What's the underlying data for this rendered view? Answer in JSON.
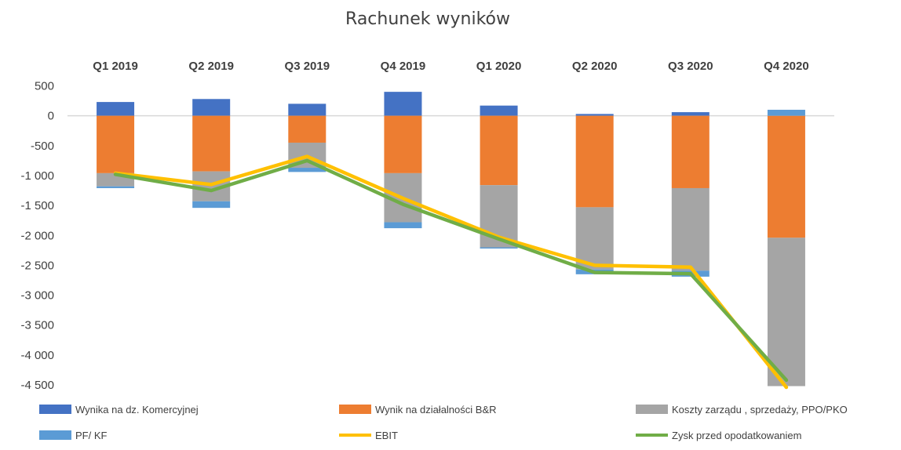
{
  "chart_data": {
    "type": "bar",
    "title": "Rachunek wyników",
    "categories": [
      "Q1 2019",
      "Q2 2019",
      "Q3 2019",
      "Q4 2019",
      "Q1 2020",
      "Q2 2020",
      "Q3 2020",
      "Q4 2020"
    ],
    "ylim": [
      -4500,
      500
    ],
    "yticks": [
      500,
      0,
      -500,
      -1000,
      -1500,
      -2000,
      -2500,
      -3000,
      -3500,
      -4000,
      -4500
    ],
    "ytick_labels": [
      "500",
      "0",
      "-500",
      "-1 000",
      "-1 500",
      "-2 000",
      "-2 500",
      "-3 000",
      "-3 500",
      "-4 000",
      "-4 500"
    ],
    "grid": false,
    "legend_position": "bottom",
    "series": [
      {
        "name": "Wynika na dz. Komercyjnej",
        "kind": "bar",
        "color": "#4472C4",
        "values": [
          230,
          280,
          200,
          400,
          170,
          30,
          60,
          0
        ]
      },
      {
        "name": "Wynik na działalności B&R",
        "kind": "bar",
        "color": "#ED7D31",
        "values": [
          -960,
          -930,
          -450,
          -960,
          -1160,
          -1530,
          -1210,
          -2040
        ]
      },
      {
        "name": "Koszty zarządu , sprzedaży, PPO/PKO",
        "kind": "bar",
        "color": "#A5A5A5",
        "values": [
          -220,
          -500,
          -420,
          -820,
          -1040,
          -1040,
          -1380,
          -2480
        ]
      },
      {
        "name": "PF/ KF",
        "kind": "bar",
        "color": "#5B9BD5",
        "values": [
          -30,
          -110,
          -70,
          -100,
          -20,
          -80,
          -100,
          100
        ]
      },
      {
        "name": "EBIT",
        "kind": "line",
        "color": "#FFC000",
        "values": [
          -960,
          -1150,
          -680,
          -1380,
          -2030,
          -2500,
          -2530,
          -4540
        ]
      },
      {
        "name": "Zysk przed opodatkowaniem",
        "kind": "line",
        "color": "#70AD47",
        "values": [
          -980,
          -1250,
          -750,
          -1480,
          -2060,
          -2620,
          -2640,
          -4420
        ]
      }
    ]
  }
}
